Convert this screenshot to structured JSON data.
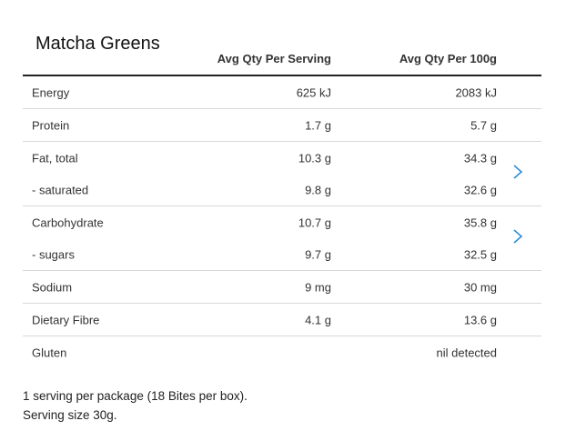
{
  "product": {
    "name": "Matcha Greens"
  },
  "columns": {
    "per_serving": "Avg Qty Per Serving",
    "per_100g": "Avg Qty Per 100g"
  },
  "rows": [
    {
      "label": "Energy",
      "serving": "625 kJ",
      "per100": "2083 kJ"
    },
    {
      "label": "Protein",
      "serving": "1.7 g",
      "per100": "5.7 g"
    },
    {
      "label": "Fat, total",
      "serving": "10.3 g",
      "per100": "34.3 g"
    },
    {
      "label": "- saturated",
      "serving": "9.8 g",
      "per100": "32.6 g"
    },
    {
      "label": "Carbohydrate",
      "serving": "10.7 g",
      "per100": "35.8 g"
    },
    {
      "label": "- sugars",
      "serving": "9.7 g",
      "per100": "32.5 g"
    },
    {
      "label": "Sodium",
      "serving": "9 mg",
      "per100": "30 mg"
    },
    {
      "label": "Dietary Fibre",
      "serving": "4.1 g",
      "per100": "13.6 g"
    },
    {
      "label": "Gluten",
      "serving": "",
      "per100": "nil detected"
    }
  ],
  "footer": {
    "line1": "1 serving per package (18 Bites per box).",
    "line2": "Serving size 30g."
  },
  "icons": {
    "expand": "chevron-right-icon"
  },
  "colors": {
    "accent": "#2a8fd6"
  }
}
